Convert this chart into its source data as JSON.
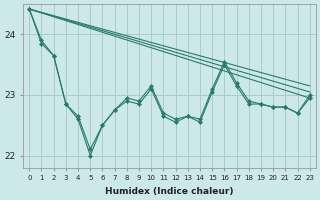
{
  "xlabel": "Humidex (Indice chaleur)",
  "bg_color": "#cce8e8",
  "grid_color": "#aacccc",
  "line_color": "#2a7a6a",
  "xlim": [
    -0.5,
    23.5
  ],
  "ylim": [
    21.8,
    24.5
  ],
  "yticks": [
    22,
    23,
    24
  ],
  "xticks": [
    0,
    1,
    2,
    3,
    4,
    5,
    6,
    7,
    8,
    9,
    10,
    11,
    12,
    13,
    14,
    15,
    16,
    17,
    18,
    19,
    20,
    21,
    22,
    23
  ],
  "trend1_x": [
    0,
    23
  ],
  "trend1_y": [
    24.42,
    22.95
  ],
  "trend2_x": [
    0,
    23
  ],
  "trend2_y": [
    24.42,
    23.05
  ],
  "trend3_x": [
    0,
    23
  ],
  "trend3_y": [
    24.42,
    23.15
  ],
  "zigzag1_x": [
    0,
    1,
    2,
    3,
    4,
    5,
    6,
    7,
    8,
    9,
    10,
    11,
    12,
    13,
    14,
    15,
    16,
    17,
    18,
    19,
    20,
    21,
    22,
    23
  ],
  "zigzag1_y": [
    24.42,
    23.9,
    23.65,
    22.85,
    22.6,
    22.0,
    22.5,
    22.75,
    22.9,
    22.85,
    23.1,
    22.65,
    22.55,
    22.65,
    22.55,
    23.05,
    23.5,
    23.15,
    22.85,
    22.85,
    22.8,
    22.8,
    22.7,
    22.95
  ],
  "zigzag2_x": [
    0,
    1,
    2,
    3,
    4,
    5,
    6,
    7,
    8,
    9,
    10,
    11,
    12,
    13,
    14,
    15,
    16,
    17,
    18,
    19,
    20,
    21,
    22,
    23
  ],
  "zigzag2_y": [
    24.42,
    23.85,
    23.65,
    22.85,
    22.65,
    22.1,
    22.5,
    22.75,
    22.95,
    22.9,
    23.15,
    22.7,
    22.6,
    22.65,
    22.6,
    23.1,
    23.55,
    23.2,
    22.9,
    22.85,
    22.8,
    22.8,
    22.7,
    23.0
  ]
}
